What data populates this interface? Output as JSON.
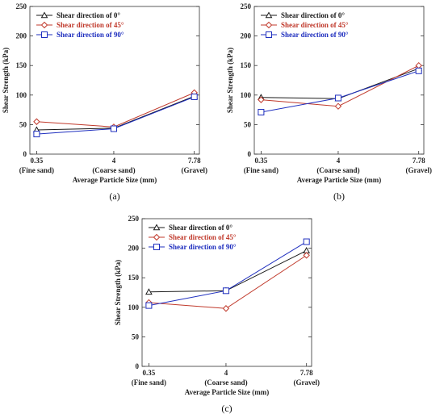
{
  "chart_data": [
    {
      "type": "line",
      "panel_label": "(a)",
      "xlabel": "Average Particle Size (mm)",
      "ylabel": "Shear Strength (kPa)",
      "x_ticks": [
        "0.35",
        "4",
        "7.78"
      ],
      "x_sublabels": [
        "(Fine sand)",
        "(Coarse sand)",
        "(Gravel)"
      ],
      "y_ticks": [
        "0",
        "50",
        "100",
        "150",
        "200",
        "250"
      ],
      "ylim": [
        0,
        250
      ],
      "legend_position": "top-left",
      "series": [
        {
          "name": "Shear direction of 0°",
          "color": "#1a1a1a",
          "marker": "triangle",
          "values": [
            41,
            44,
            98
          ]
        },
        {
          "name": "Shear direction of 45°",
          "color": "#c0392b",
          "marker": "diamond",
          "values": [
            55,
            46,
            104
          ]
        },
        {
          "name": "Shear direction of 90°",
          "color": "#1f2fbf",
          "marker": "square",
          "values": [
            34,
            43,
            97
          ]
        }
      ]
    },
    {
      "type": "line",
      "panel_label": "(b)",
      "xlabel": "Average Particle Size (mm)",
      "ylabel": "Shear Strength (kPa)",
      "x_ticks": [
        "0.35",
        "4",
        "7.78"
      ],
      "x_sublabels": [
        "(Fine sand)",
        "(Coarse sand)",
        "(Gravel)"
      ],
      "y_ticks": [
        "0",
        "50",
        "100",
        "150",
        "200",
        "250"
      ],
      "ylim": [
        0,
        250
      ],
      "legend_position": "top-left",
      "series": [
        {
          "name": "Shear direction of 0°",
          "color": "#1a1a1a",
          "marker": "triangle",
          "values": [
            96,
            94,
            145
          ]
        },
        {
          "name": "Shear direction of 45°",
          "color": "#c0392b",
          "marker": "diamond",
          "values": [
            92,
            81,
            150
          ]
        },
        {
          "name": "Shear direction of 90°",
          "color": "#1f2fbf",
          "marker": "square",
          "values": [
            71,
            95,
            141
          ]
        }
      ]
    },
    {
      "type": "line",
      "panel_label": "(c)",
      "xlabel": "Average Particle Size (mm)",
      "ylabel": "Shear Strength (kPa)",
      "x_ticks": [
        "0.35",
        "4",
        "7.78"
      ],
      "x_sublabels": [
        "(Fine sand)",
        "(Coarse sand)",
        "(Gravel)"
      ],
      "y_ticks": [
        "0",
        "50",
        "100",
        "150",
        "200",
        "250"
      ],
      "ylim": [
        0,
        250
      ],
      "legend_position": "top-left",
      "series": [
        {
          "name": "Shear direction of 0°",
          "color": "#1a1a1a",
          "marker": "triangle",
          "values": [
            126,
            128,
            196
          ]
        },
        {
          "name": "Shear direction of 45°",
          "color": "#c0392b",
          "marker": "diamond",
          "values": [
            108,
            98,
            188
          ]
        },
        {
          "name": "Shear direction of 90°",
          "color": "#1f2fbf",
          "marker": "square",
          "values": [
            103,
            128,
            211
          ]
        }
      ]
    }
  ]
}
